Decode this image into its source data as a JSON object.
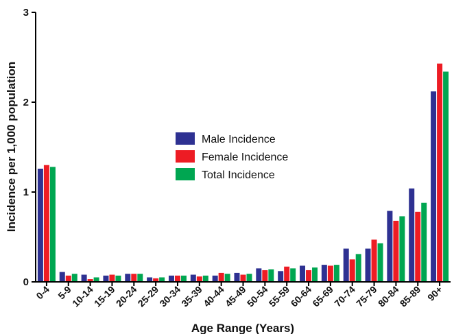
{
  "chart_data": {
    "type": "bar",
    "xlabel": "Age Range (Years)",
    "ylabel": "Incidence per 1,000 population",
    "ylim": [
      0,
      3
    ],
    "yticks": [
      "0",
      "1",
      "2",
      "3"
    ],
    "legend_position": "center",
    "grid": false,
    "categories": [
      "0-4",
      "5-9",
      "10-14",
      "15-19",
      "20-24",
      "25-29",
      "30-34",
      "35-39",
      "40-44",
      "45-49",
      "50-54",
      "55-59",
      "60-64",
      "65-69",
      "70-74",
      "75-79",
      "80-84",
      "85-89",
      "90+"
    ],
    "series": [
      {
        "name": "Male Incidence",
        "color": "#2e3192",
        "values": [
          1.26,
          0.11,
          0.08,
          0.07,
          0.09,
          0.05,
          0.07,
          0.08,
          0.07,
          0.1,
          0.15,
          0.12,
          0.18,
          0.19,
          0.37,
          0.37,
          0.79,
          1.04,
          2.12
        ]
      },
      {
        "name": "Female Incidence",
        "color": "#ed1c24",
        "values": [
          1.3,
          0.07,
          0.03,
          0.08,
          0.09,
          0.04,
          0.07,
          0.06,
          0.1,
          0.08,
          0.13,
          0.17,
          0.13,
          0.18,
          0.25,
          0.47,
          0.68,
          0.78,
          2.43
        ]
      },
      {
        "name": "Total Incidence",
        "color": "#00a651",
        "values": [
          1.28,
          0.09,
          0.05,
          0.07,
          0.09,
          0.05,
          0.07,
          0.07,
          0.09,
          0.09,
          0.14,
          0.15,
          0.16,
          0.19,
          0.31,
          0.43,
          0.73,
          0.88,
          2.34
        ]
      }
    ]
  }
}
